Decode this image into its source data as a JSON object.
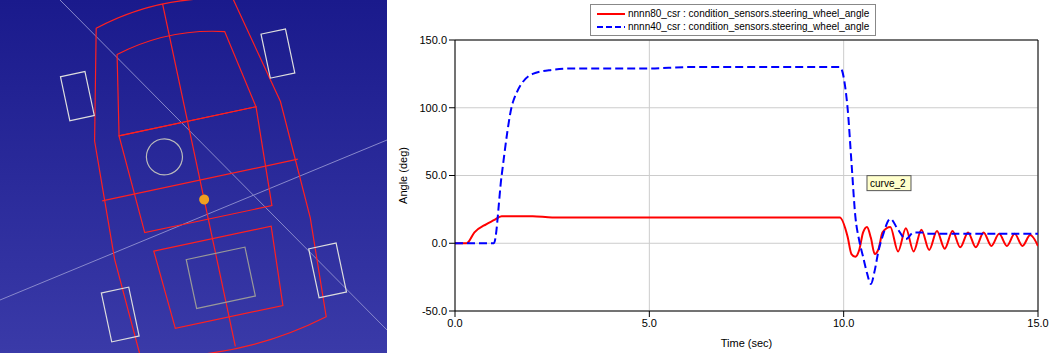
{
  "chart_data": {
    "type": "line",
    "x_label": "Time (sec)",
    "y_label": "Angle (deg)",
    "xlim": [
      0,
      15
    ],
    "xticks": [
      {
        "value": 0,
        "label": "0.0"
      },
      {
        "value": 5,
        "label": "5.0"
      },
      {
        "value": 10,
        "label": "10.0"
      },
      {
        "value": 15,
        "label": "15.0"
      }
    ],
    "ylim": [
      -50,
      150
    ],
    "yticks": [
      {
        "value": -50,
        "label": "-50.0"
      },
      {
        "value": 0,
        "label": "0.0"
      },
      {
        "value": 50,
        "label": "50.0"
      },
      {
        "value": 100,
        "label": "100.0"
      },
      {
        "value": 150,
        "label": "150.0"
      }
    ],
    "grid": true,
    "legend": "top",
    "x": [
      0,
      0.3,
      0.5,
      0.8,
      1.0,
      1.2,
      1.5,
      2.0,
      2.5,
      3,
      4,
      5,
      6,
      7,
      8,
      9,
      9.9,
      10.1,
      10.2,
      10.3,
      10.4,
      10.5,
      10.6,
      10.7,
      10.8,
      10.9,
      11.0,
      11.2,
      11.4,
      11.6,
      11.8,
      12.0,
      12.2,
      12.4,
      12.6,
      12.8,
      13.0,
      13.2,
      13.4,
      13.6,
      13.8,
      14.0,
      14.2,
      14.4,
      14.6,
      14.8,
      15.0
    ],
    "series": [
      {
        "name": "nnnn80_csr : condition_sensors.steering_wheel_angle",
        "color": "#ff0000",
        "line_style": "solid",
        "values": [
          0,
          0,
          8,
          14,
          17,
          20,
          20,
          20,
          19,
          19,
          19,
          19,
          19,
          19,
          19,
          19,
          19,
          5,
          -8,
          -10,
          -5,
          8,
          12,
          4,
          -8,
          -4,
          8,
          12,
          -6,
          11,
          -6,
          10,
          -5,
          9,
          -4,
          9,
          -3,
          8,
          -3,
          8,
          -2,
          7,
          -2,
          7,
          -2,
          6,
          -2
        ]
      },
      {
        "name": "nnnn40_csr : condition_sensors.steering_wheel_angle",
        "color": "#0000ff",
        "line_style": "dashed",
        "values": [
          0,
          0,
          0,
          0,
          0,
          50,
          105,
          125,
          128,
          129,
          129,
          129,
          130,
          130,
          130,
          130,
          130,
          100,
          60,
          20,
          2,
          -10,
          -22,
          -30,
          -20,
          -5,
          5,
          18,
          10,
          3,
          8,
          8,
          7,
          7,
          7,
          7,
          7,
          7,
          7,
          7,
          7,
          7,
          7,
          7,
          7,
          7,
          7
        ]
      }
    ],
    "annotations": [
      {
        "text": "curve_2",
        "x": 10.6,
        "y": 44
      }
    ]
  }
}
